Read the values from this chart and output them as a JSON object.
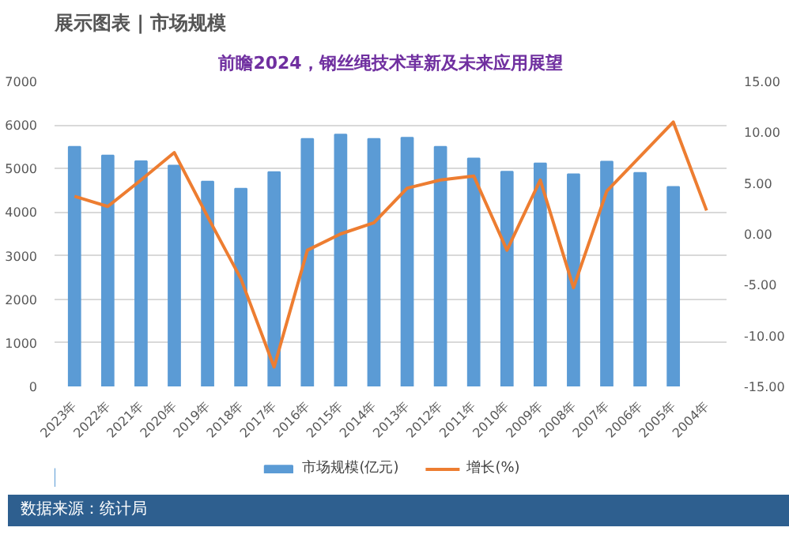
{
  "chart_data": {
    "type": "bar",
    "title": "展示图表 | 市场规模",
    "subtitle": "前瞻2024，钢丝绳技术革新及未来应用展望",
    "categories": [
      "2023年",
      "2022年",
      "2021年",
      "2020年",
      "2019年",
      "2018年",
      "2017年",
      "2016年",
      "2015年",
      "2014年",
      "2013年",
      "2012年",
      "2011年",
      "2010年",
      "2009年",
      "2008年",
      "2007年",
      "2006年",
      "2005年",
      "2004年"
    ],
    "series": [
      {
        "name": "市场规模(亿元)",
        "color": "#5b9bd5",
        "values": [
          5500,
          5300,
          5170,
          5070,
          4700,
          4540,
          4920,
          5680,
          5780,
          5680,
          5710,
          5500,
          5230,
          4930,
          5120,
          4870,
          5160,
          4900,
          4580,
          null
        ]
      },
      {
        "name": "增长(%)",
        "type": "line",
        "axis": "y2",
        "color": "#ed7d31",
        "values": [
          3.7,
          2.7,
          5.3,
          8.0,
          1.7,
          -4.4,
          -13.1,
          -1.6,
          0.0,
          1.1,
          4.5,
          5.3,
          5.7,
          -1.6,
          5.3,
          -5.3,
          4.2,
          7.6,
          11.0,
          2.3
        ]
      }
    ],
    "ylim": [
      0,
      7000
    ],
    "yticks": [
      0,
      1000,
      2000,
      3000,
      4000,
      5000,
      6000,
      7000
    ],
    "y2lim": [
      -15,
      15
    ],
    "y2ticks": [
      {
        "value": -15,
        "label": "-15.00"
      },
      {
        "value": -10,
        "label": "-10.00"
      },
      {
        "value": -5,
        "label": "-5.00"
      },
      {
        "value": 0,
        "label": "0.00"
      },
      {
        "value": 5,
        "label": "5.00"
      },
      {
        "value": 10,
        "label": "10.00"
      },
      {
        "value": 15,
        "label": "15.00"
      }
    ],
    "grid": "y",
    "legend": "bottom",
    "annotations": [
      "数据来源：统计局"
    ]
  }
}
